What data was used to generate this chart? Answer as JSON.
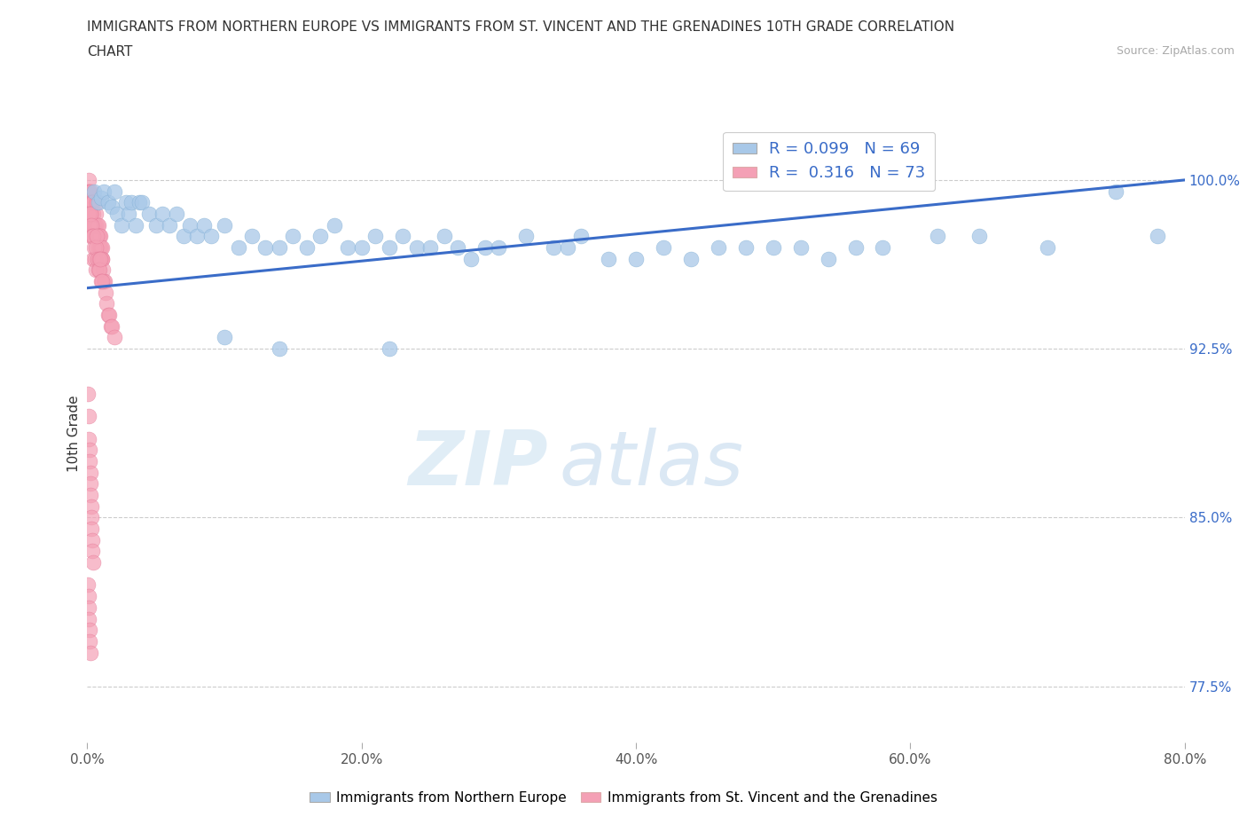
{
  "title_line1": "IMMIGRANTS FROM NORTHERN EUROPE VS IMMIGRANTS FROM ST. VINCENT AND THE GRENADINES 10TH GRADE CORRELATION",
  "title_line2": "CHART",
  "source": "Source: ZipAtlas.com",
  "ylabel": "10th Grade",
  "xlim": [
    0.0,
    80.0
  ],
  "ylim": [
    75.0,
    102.5
  ],
  "yticks": [
    77.5,
    85.0,
    92.5,
    100.0
  ],
  "xticks": [
    0.0,
    20.0,
    40.0,
    60.0,
    80.0
  ],
  "blue_R": 0.099,
  "blue_N": 69,
  "pink_R": 0.316,
  "pink_N": 73,
  "blue_color": "#a8c8e8",
  "pink_color": "#f4a0b5",
  "trend_color": "#3a6cc8",
  "legend_label_blue": "Immigrants from Northern Europe",
  "legend_label_pink": "Immigrants from St. Vincent and the Grenadines",
  "watermark_zip": "ZIP",
  "watermark_atlas": "atlas",
  "blue_trend_x": [
    0.0,
    80.0
  ],
  "blue_trend_y": [
    95.2,
    100.0
  ],
  "blue_x": [
    0.5,
    0.8,
    1.0,
    1.2,
    1.5,
    1.8,
    2.0,
    2.2,
    2.5,
    2.8,
    3.0,
    3.2,
    3.5,
    3.8,
    4.0,
    4.5,
    5.0,
    5.5,
    6.0,
    6.5,
    7.0,
    7.5,
    8.0,
    8.5,
    9.0,
    10.0,
    11.0,
    12.0,
    13.0,
    14.0,
    15.0,
    16.0,
    17.0,
    18.0,
    19.0,
    20.0,
    21.0,
    22.0,
    23.0,
    24.0,
    25.0,
    26.0,
    27.0,
    28.0,
    29.0,
    30.0,
    32.0,
    34.0,
    35.0,
    36.0,
    38.0,
    40.0,
    42.0,
    44.0,
    46.0,
    48.0,
    50.0,
    52.0,
    54.0,
    56.0,
    58.0,
    62.0,
    65.0,
    70.0,
    75.0,
    78.0,
    10.0,
    14.0,
    22.0
  ],
  "blue_y": [
    99.5,
    99.0,
    99.2,
    99.5,
    99.0,
    98.8,
    99.5,
    98.5,
    98.0,
    99.0,
    98.5,
    99.0,
    98.0,
    99.0,
    99.0,
    98.5,
    98.0,
    98.5,
    98.0,
    98.5,
    97.5,
    98.0,
    97.5,
    98.0,
    97.5,
    98.0,
    97.0,
    97.5,
    97.0,
    97.0,
    97.5,
    97.0,
    97.5,
    98.0,
    97.0,
    97.0,
    97.5,
    97.0,
    97.5,
    97.0,
    97.0,
    97.5,
    97.0,
    96.5,
    97.0,
    97.0,
    97.5,
    97.0,
    97.0,
    97.5,
    96.5,
    96.5,
    97.0,
    96.5,
    97.0,
    97.0,
    97.0,
    97.0,
    96.5,
    97.0,
    97.0,
    97.5,
    97.5,
    97.0,
    99.5,
    97.5,
    93.0,
    92.5,
    92.5
  ],
  "pink_x": [
    0.05,
    0.08,
    0.1,
    0.12,
    0.15,
    0.18,
    0.2,
    0.22,
    0.25,
    0.28,
    0.3,
    0.32,
    0.35,
    0.38,
    0.4,
    0.42,
    0.45,
    0.48,
    0.5,
    0.52,
    0.55,
    0.58,
    0.6,
    0.62,
    0.65,
    0.68,
    0.7,
    0.72,
    0.75,
    0.78,
    0.8,
    0.82,
    0.85,
    0.88,
    0.9,
    0.92,
    0.95,
    0.98,
    1.0,
    1.02,
    1.05,
    1.08,
    1.1,
    1.15,
    1.2,
    1.25,
    1.3,
    1.4,
    1.5,
    1.6,
    1.7,
    1.8,
    2.0,
    0.1,
    0.15,
    0.2,
    0.25,
    0.3,
    0.35,
    0.4,
    0.45,
    0.5,
    0.55,
    0.6,
    0.65,
    0.7,
    0.75,
    0.8,
    0.85,
    0.9,
    0.95,
    1.0,
    1.1
  ],
  "pink_y": [
    99.5,
    99.0,
    100.0,
    99.5,
    99.0,
    99.5,
    99.0,
    98.5,
    99.0,
    99.5,
    98.5,
    99.0,
    98.0,
    99.0,
    98.5,
    98.0,
    99.0,
    98.0,
    98.0,
    97.5,
    98.0,
    97.5,
    98.5,
    97.5,
    98.0,
    97.5,
    99.0,
    97.5,
    98.0,
    97.0,
    98.0,
    97.5,
    97.0,
    97.5,
    97.5,
    97.0,
    97.5,
    96.5,
    97.0,
    96.5,
    97.0,
    96.5,
    96.5,
    96.0,
    95.5,
    95.5,
    95.0,
    94.5,
    94.0,
    94.0,
    93.5,
    93.5,
    93.0,
    98.5,
    98.0,
    98.5,
    97.5,
    98.0,
    97.5,
    97.5,
    96.5,
    97.0,
    96.5,
    97.0,
    96.0,
    97.5,
    96.5,
    96.0,
    96.5,
    96.0,
    96.5,
    95.5,
    95.5
  ],
  "pink_low_x": [
    0.05,
    0.08,
    0.12,
    0.15,
    0.18,
    0.2,
    0.22,
    0.25,
    0.28,
    0.3,
    0.32,
    0.35,
    0.38,
    0.4
  ],
  "pink_low_y": [
    90.5,
    89.5,
    88.5,
    88.0,
    87.5,
    87.0,
    86.5,
    86.0,
    85.5,
    85.0,
    84.5,
    84.0,
    83.5,
    83.0
  ],
  "pink_very_low_x": [
    0.05,
    0.08,
    0.1,
    0.12,
    0.15,
    0.18,
    0.2
  ],
  "pink_very_low_y": [
    82.0,
    81.5,
    81.0,
    80.5,
    80.0,
    79.5,
    79.0
  ]
}
